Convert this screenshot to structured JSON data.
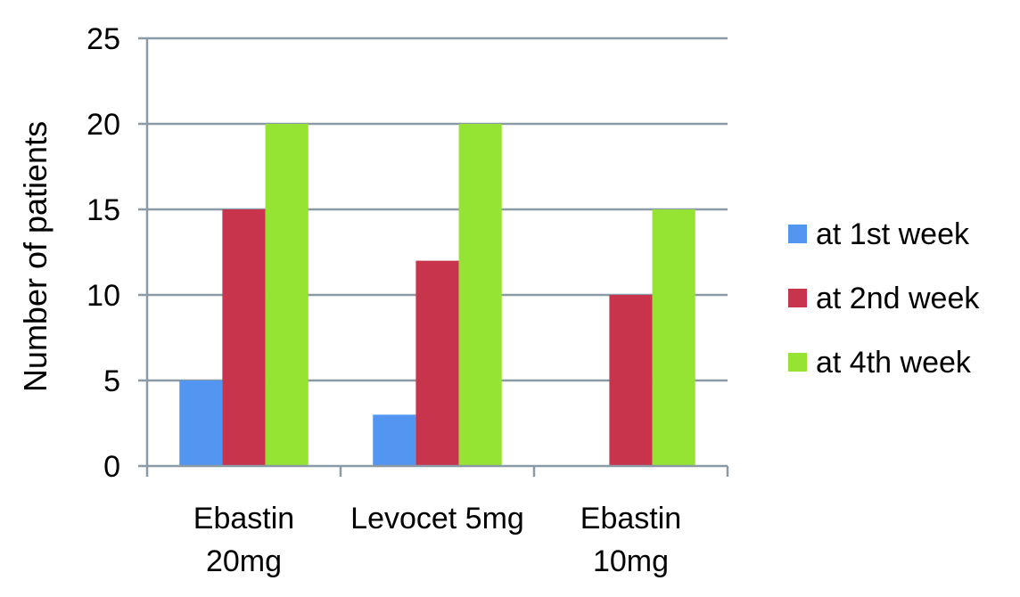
{
  "chart_data": {
    "type": "bar",
    "categories": [
      [
        "Ebastin",
        "20mg"
      ],
      [
        "Levocet 5mg"
      ],
      [
        "Ebastin",
        "10mg"
      ]
    ],
    "series": [
      {
        "name": "at 1st week",
        "color": "#5396F2",
        "values": [
          5,
          3,
          0
        ]
      },
      {
        "name": "at 2nd week",
        "color": "#C8344B",
        "values": [
          15,
          12,
          10
        ]
      },
      {
        "name": "at 4th week",
        "color": "#95E332",
        "values": [
          20,
          20,
          15
        ]
      }
    ],
    "title": "",
    "xlabel": "",
    "ylabel": "Number of patients",
    "ylim": [
      0,
      25
    ],
    "yticks": [
      0,
      5,
      10,
      15,
      20,
      25
    ],
    "grid": true,
    "gridColor": "#8C9AA6",
    "legend_position": "right"
  }
}
